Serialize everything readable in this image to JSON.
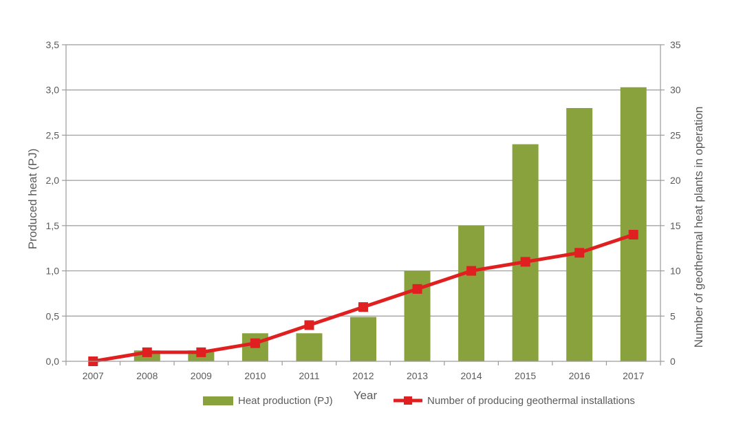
{
  "chart_data": {
    "type": "bar",
    "xlabel": "Year",
    "ylabel_left": "Produced heat (PJ)",
    "ylabel_right": "Number of geothermal heat plants in operation",
    "categories": [
      "2007",
      "2008",
      "2009",
      "2010",
      "2011",
      "2012",
      "2013",
      "2014",
      "2015",
      "2016",
      "2017"
    ],
    "ylim_left": [
      0,
      3.5
    ],
    "ylim_right": [
      0,
      35
    ],
    "left_ticks": [
      "0,0",
      "0,5",
      "1,0",
      "1,5",
      "2,0",
      "2,5",
      "3,0",
      "3,5"
    ],
    "right_ticks": [
      "0",
      "5",
      "10",
      "15",
      "20",
      "25",
      "30",
      "35"
    ],
    "grid": true,
    "legend_position": "bottom",
    "series": [
      {
        "name": "Heat production (PJ)",
        "type": "bar",
        "axis": "left",
        "color": "#8aa23d",
        "values": [
          0.0,
          0.12,
          0.12,
          0.31,
          0.31,
          0.49,
          1.0,
          1.5,
          2.4,
          2.8,
          3.03
        ]
      },
      {
        "name": "Number of producing geothermal installations",
        "type": "line",
        "axis": "right",
        "color": "#e02020",
        "values": [
          0,
          1,
          1,
          2,
          4,
          6,
          8,
          10,
          11,
          12,
          14
        ]
      }
    ]
  }
}
